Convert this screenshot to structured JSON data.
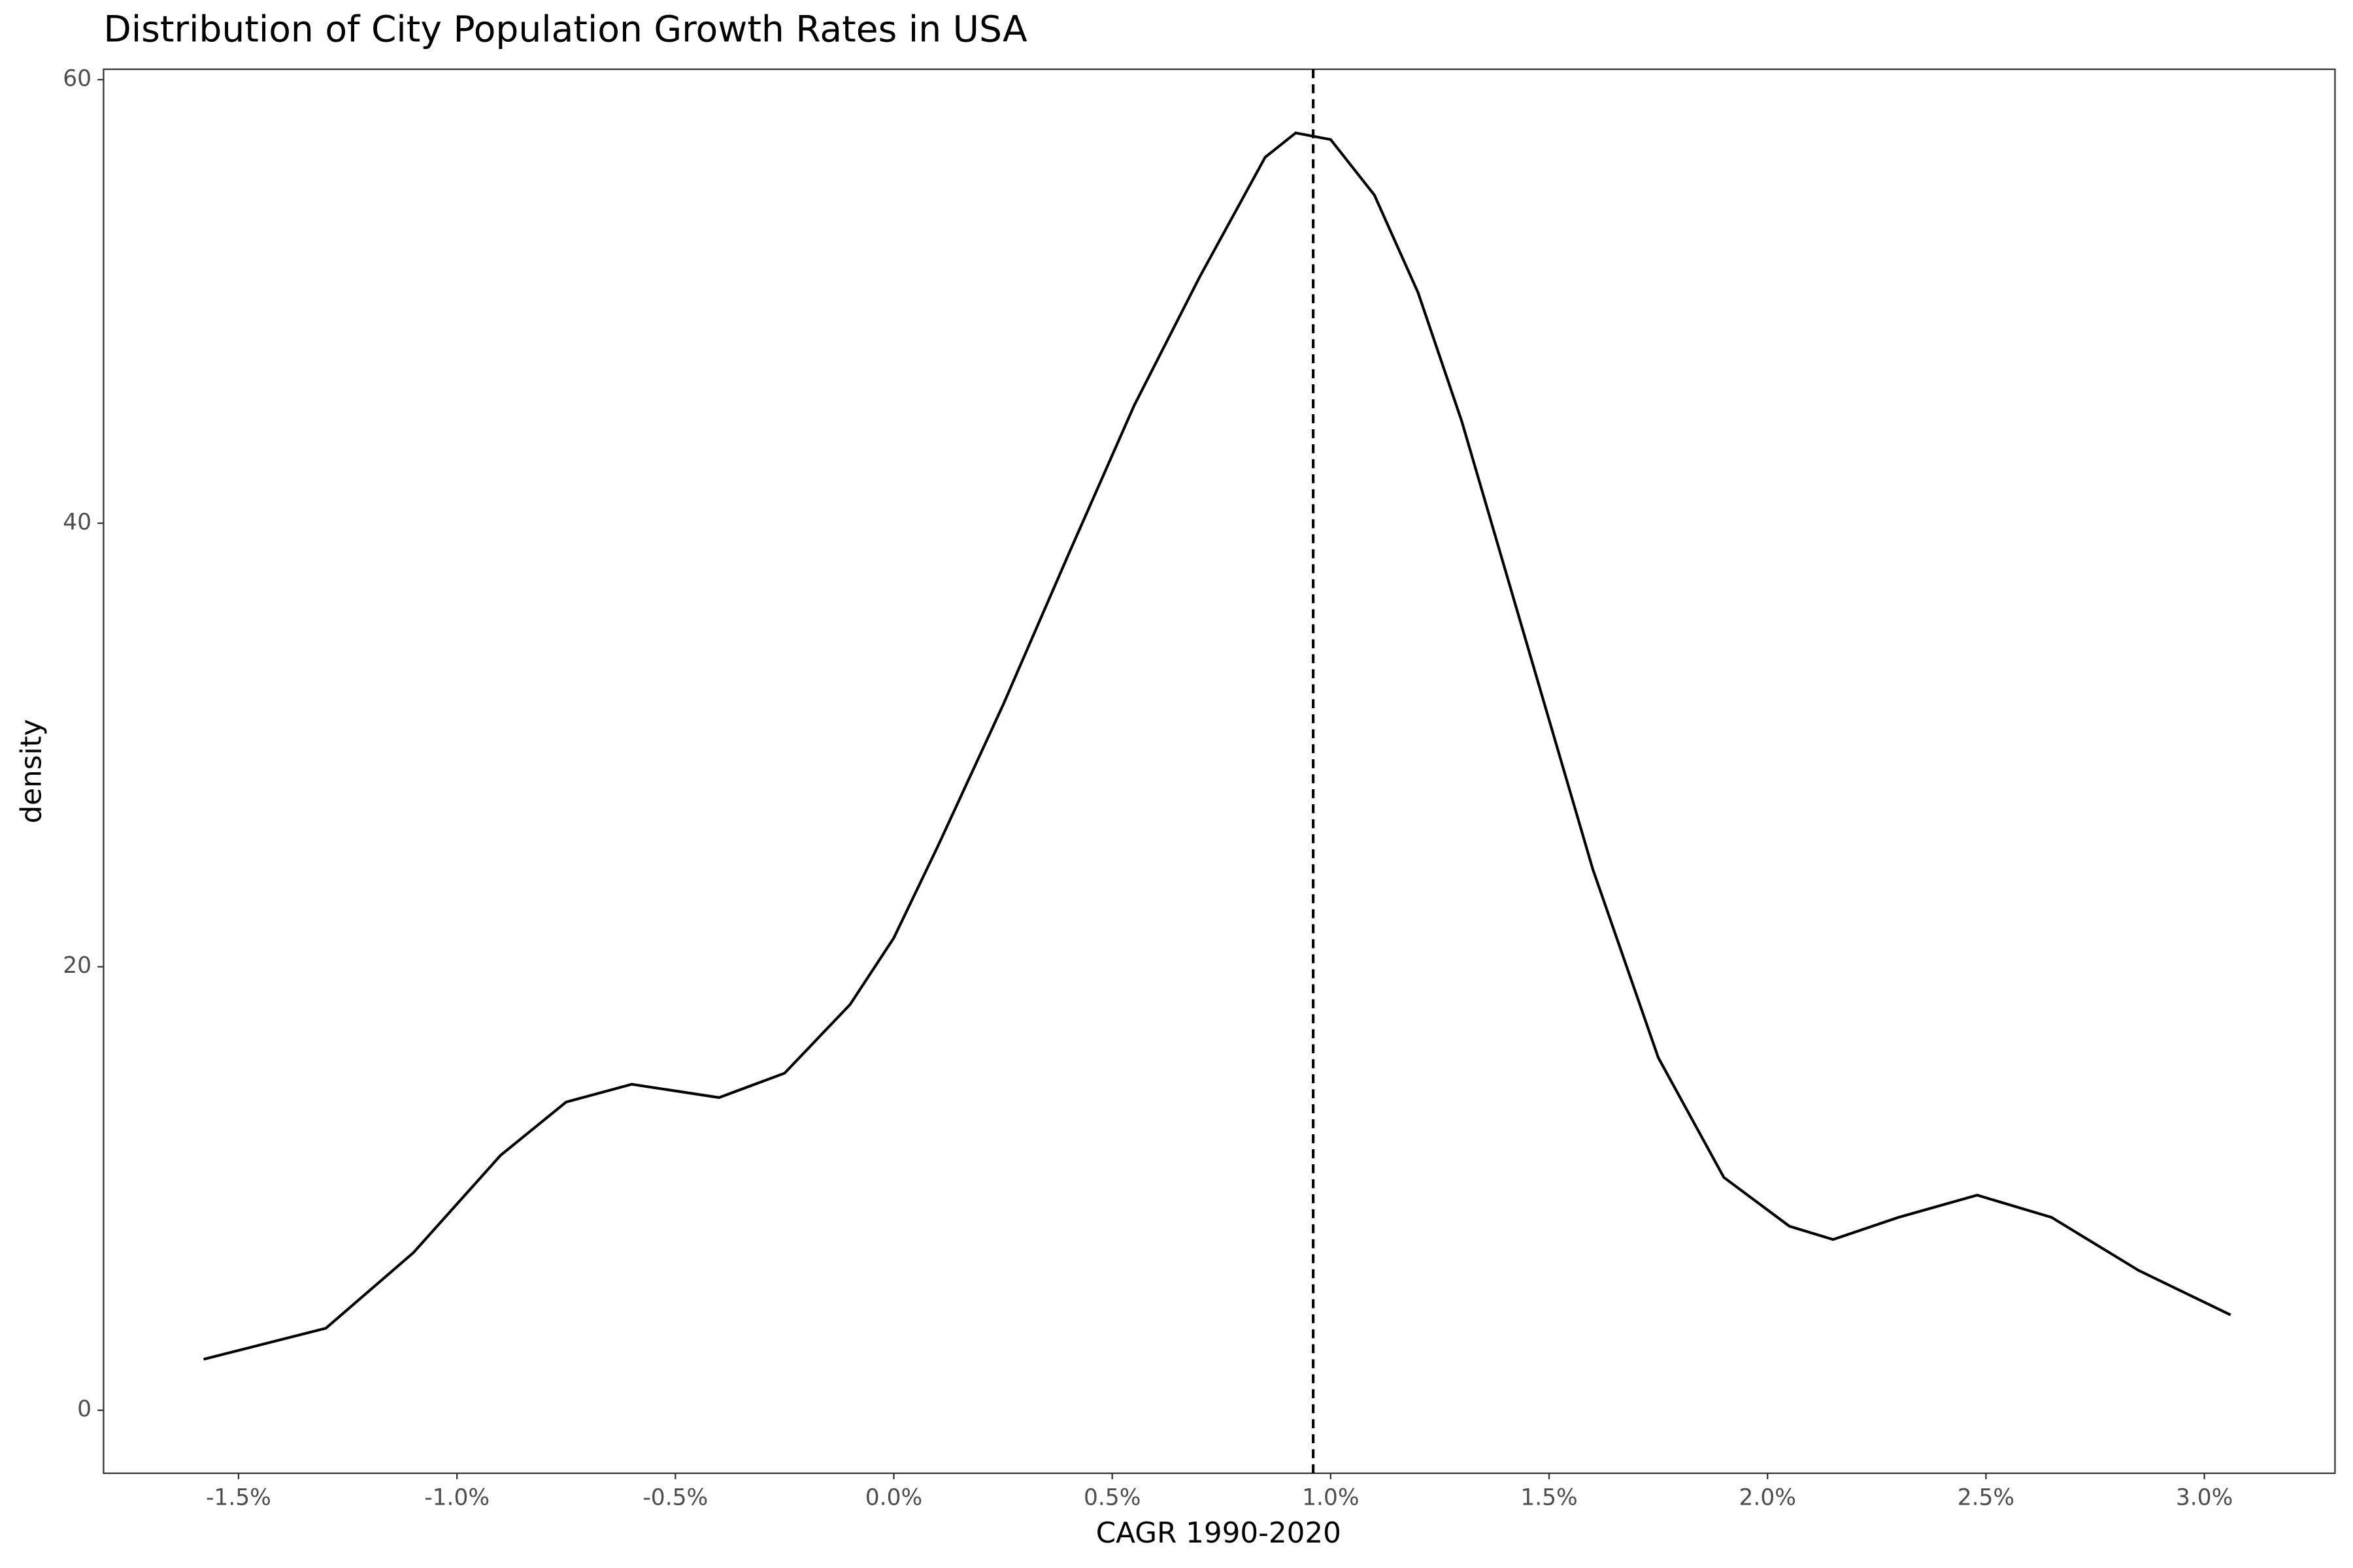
{
  "chart_data": {
    "type": "density",
    "title": "Distribution of City Population Growth Rates in USA",
    "xlabel": "CAGR 1990-2020",
    "ylabel": "density",
    "x": [
      -1.58,
      -1.3,
      -1.1,
      -0.9,
      -0.75,
      -0.6,
      -0.4,
      -0.25,
      -0.1,
      0.0,
      0.1,
      0.25,
      0.4,
      0.55,
      0.7,
      0.85,
      0.92,
      1.0,
      1.1,
      1.2,
      1.3,
      1.45,
      1.6,
      1.75,
      1.9,
      2.05,
      2.15,
      2.3,
      2.48,
      2.65,
      2.85,
      3.06
    ],
    "values": [
      2.3,
      3.7,
      7.1,
      11.5,
      13.9,
      14.7,
      14.1,
      15.2,
      18.3,
      21.3,
      25.4,
      31.8,
      38.6,
      45.3,
      51.1,
      56.5,
      57.6,
      57.3,
      54.8,
      50.4,
      44.6,
      34.5,
      24.4,
      15.9,
      10.5,
      8.3,
      7.7,
      8.7,
      9.7,
      8.7,
      6.3,
      4.3
    ],
    "color": "#000000",
    "vline": 0.96,
    "xlim": [
      -1.809,
      3.299
    ],
    "ylim": [
      -2.84,
      60.47
    ],
    "xticks": [
      {
        "value": -1.5,
        "label": "-1.5%"
      },
      {
        "value": -1.0,
        "label": "-1.0%"
      },
      {
        "value": -0.5,
        "label": "-0.5%"
      },
      {
        "value": 0,
        "label": "0.0%"
      },
      {
        "value": 0.5,
        "label": "0.5%"
      },
      {
        "value": 1.0,
        "label": "1.0%"
      },
      {
        "value": 1.5,
        "label": "1.5%"
      },
      {
        "value": 2.0,
        "label": "2.0%"
      },
      {
        "value": 2.5,
        "label": "2.5%"
      },
      {
        "value": 3.0,
        "label": "3.0%"
      }
    ],
    "yticks": [
      0,
      20,
      40,
      60
    ],
    "grid": false
  }
}
